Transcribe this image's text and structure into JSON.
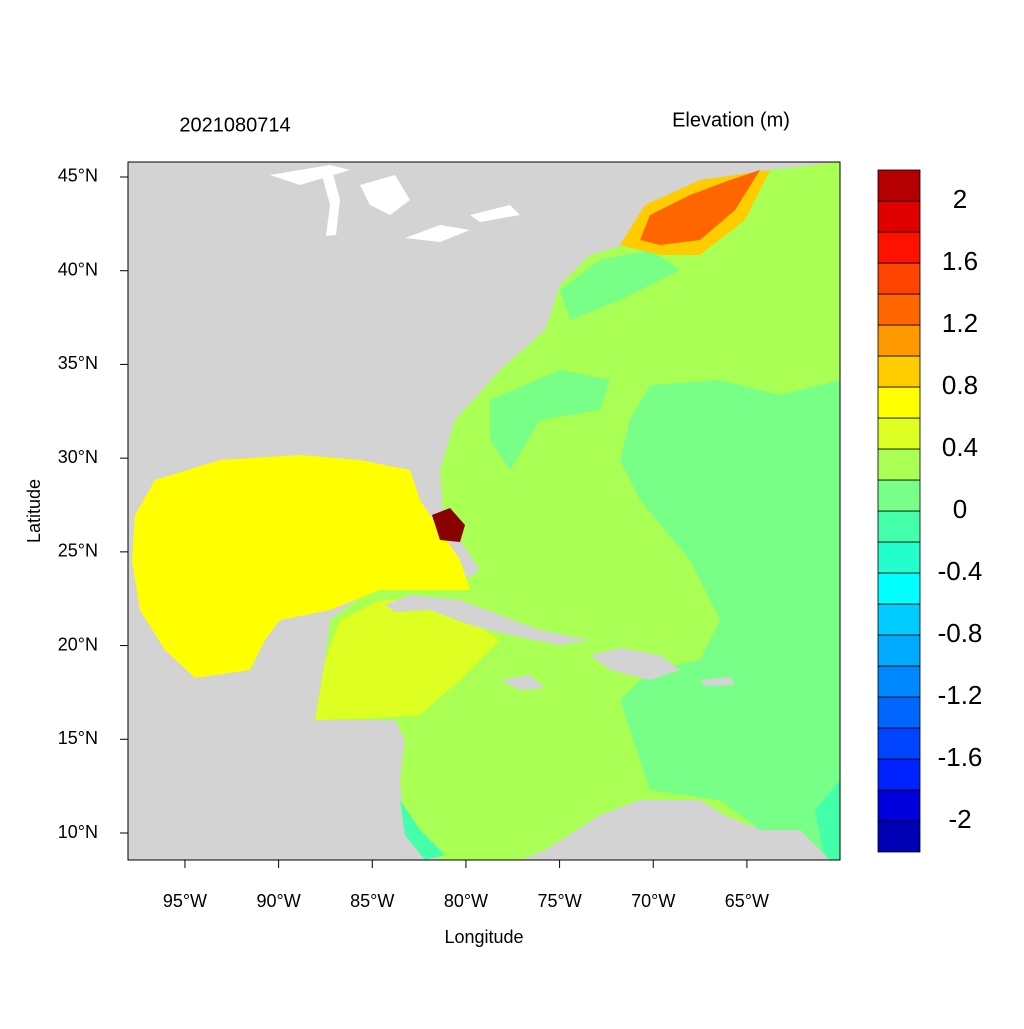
{
  "map": {
    "title": "2021080714",
    "colorbar_title": "Elevation (m)",
    "xlabel": "Longitude",
    "ylabel": "Latitude",
    "xlim": [
      -98.04,
      -60.03
    ],
    "ylim": [
      8.56,
      45.8
    ],
    "xticks": [
      {
        "value": -95,
        "label": "95°W"
      },
      {
        "value": -90,
        "label": "90°W"
      },
      {
        "value": -85,
        "label": "85°W"
      },
      {
        "value": -80,
        "label": "80°W"
      },
      {
        "value": -75,
        "label": "75°W"
      },
      {
        "value": -70,
        "label": "70°W"
      },
      {
        "value": -65,
        "label": "65°W"
      }
    ],
    "yticks": [
      {
        "value": 10,
        "label": "10°N"
      },
      {
        "value": 15,
        "label": "15°N"
      },
      {
        "value": 20,
        "label": "20°N"
      },
      {
        "value": 25,
        "label": "25°N"
      },
      {
        "value": 30,
        "label": "30°N"
      },
      {
        "value": 35,
        "label": "35°N"
      },
      {
        "value": 40,
        "label": "40°N"
      },
      {
        "value": 45,
        "label": "45°N"
      }
    ]
  },
  "colorbar": {
    "levels": [
      -2.2,
      -2.0,
      -1.8,
      -1.6,
      -1.4,
      -1.2,
      -1.0,
      -0.8,
      -0.6,
      -0.4,
      -0.2,
      0,
      0.2,
      0.4,
      0.6,
      0.8,
      1.0,
      1.2,
      1.4,
      1.6,
      1.8,
      2.0,
      2.2
    ],
    "colors": [
      "#0000b4",
      "#0000dc",
      "#0022ff",
      "#0044ff",
      "#0066ff",
      "#0088ff",
      "#00aaff",
      "#00ccff",
      "#00ffff",
      "#22ffcc",
      "#44ffaa",
      "#77ff88",
      "#aaff55",
      "#ddff22",
      "#ffff00",
      "#ffcc00",
      "#ff9900",
      "#ff6600",
      "#ff4400",
      "#ff1100",
      "#e00000",
      "#b40000",
      "#880000"
    ],
    "ticks": [
      -2,
      -1.6,
      -1.2,
      -0.8,
      -0.4,
      0,
      0.4,
      0.8,
      1.2,
      1.6,
      2
    ]
  }
}
